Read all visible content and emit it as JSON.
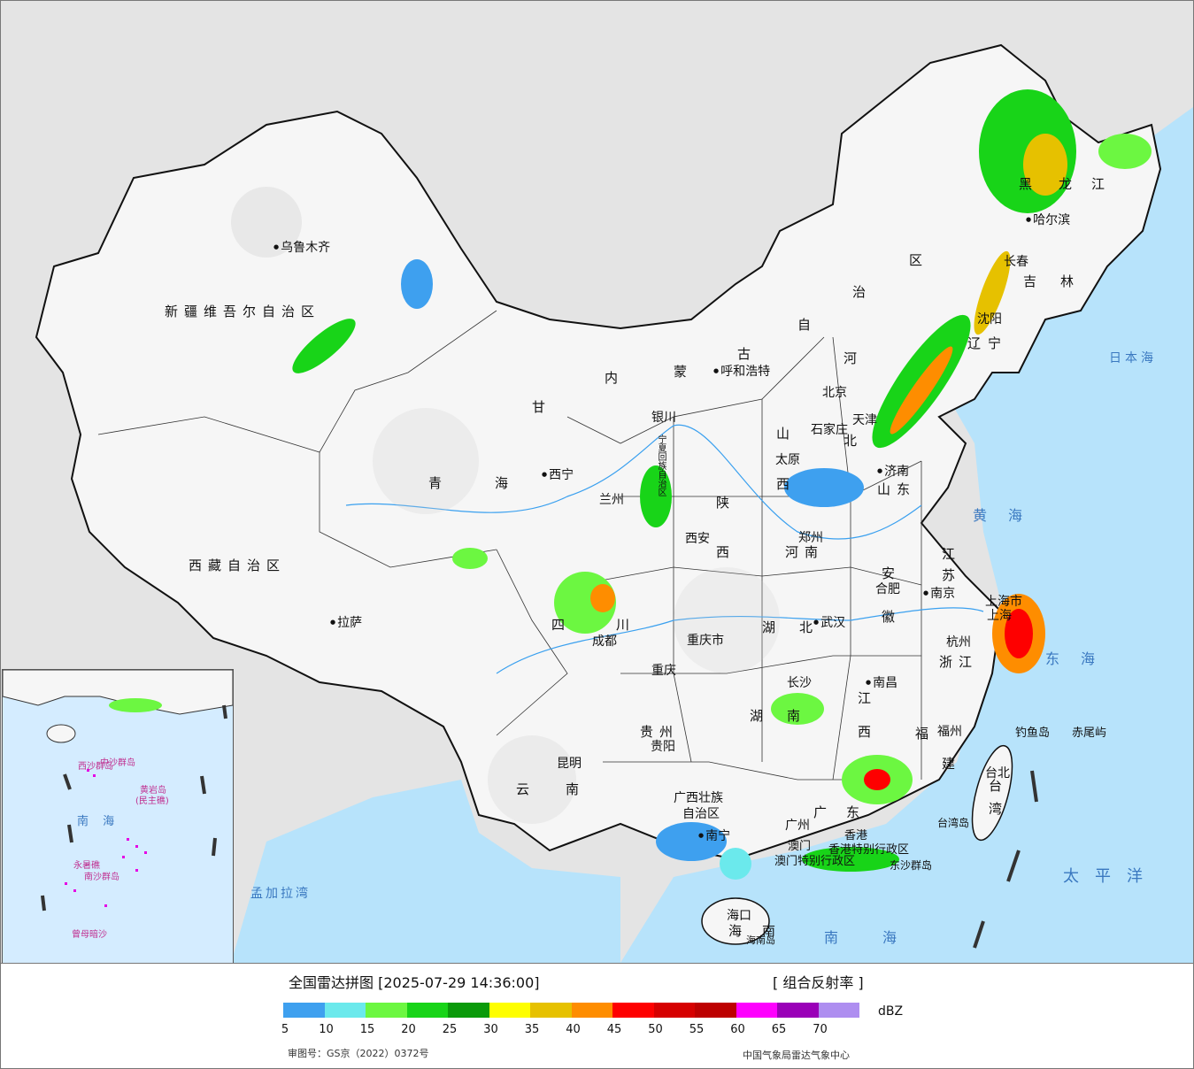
{
  "title": "全国雷达拼图 [2025-07-29 14:36:00]",
  "product": "[ 组合反射率 ]",
  "unit": "dBZ",
  "legend": {
    "colors": [
      "#3ea0ef",
      "#6be9ec",
      "#6cf741",
      "#18d418",
      "#0a9a0a",
      "#fefe00",
      "#e6c100",
      "#fe8d00",
      "#fe0000",
      "#d60000",
      "#bd0000",
      "#fe00fe",
      "#9a00b8",
      "#ae8ef0"
    ],
    "ticks": [
      "5",
      "10",
      "15",
      "20",
      "25",
      "30",
      "35",
      "40",
      "45",
      "50",
      "55",
      "60",
      "65",
      "70"
    ]
  },
  "review_number": "审图号：GS京（2022）0372号",
  "organization": "中国气象局雷达气象中心",
  "regions": {
    "xinjiang": "新疆维吾尔自治区",
    "tibet": "西藏自治区",
    "qinghai_1": "青",
    "qinghai_2": "海",
    "gansu": "甘",
    "neimenggu": [
      "内",
      "蒙",
      "古",
      "自",
      "治",
      "区"
    ],
    "heilongjiang": [
      "黑",
      "龙",
      "江"
    ],
    "jilin": [
      "吉",
      "林"
    ],
    "liaoning": [
      "辽",
      "宁"
    ],
    "hebei": [
      "河",
      "北"
    ],
    "shanxi": [
      "山",
      "西"
    ],
    "shandong": "山东",
    "henan": "河南",
    "shaanxi": [
      "陕",
      "西"
    ],
    "sichuan": [
      "四",
      "川"
    ],
    "chongqing": "重庆市",
    "hubei": [
      "湖",
      "北"
    ],
    "hunan": [
      "湖",
      "南"
    ],
    "jiangxi": [
      "江",
      "西"
    ],
    "anhui": [
      "安",
      "徽"
    ],
    "jiangsu": [
      "江",
      "苏"
    ],
    "zhejiang": "浙江",
    "fujian": [
      "福",
      "建"
    ],
    "guizhou": "贵州",
    "yunnan": [
      "云",
      "南"
    ],
    "guangxi_1": "广西壮族",
    "guangxi_2": "自治区",
    "guangdong": [
      "广",
      "东"
    ],
    "hainan_1": "海",
    "hainan_2": "南",
    "taiwan": [
      "台",
      "湾"
    ],
    "shanghai": "上海市",
    "ningxia": "宁夏回族自治区",
    "hk": "香港特别行政区",
    "macau": "澳门特别行政区"
  },
  "cities": {
    "urumqi": "乌鲁木齐",
    "lhasa": "拉萨",
    "xining": "西宁",
    "lanzhou": "兰州",
    "yinchuan": "银川",
    "hohhot": "呼和浩特",
    "beijing": "北京",
    "tianjin": "天津",
    "shijiazhuang": "石家庄",
    "taiyuan": "太原",
    "jinan": "济南",
    "zhengzhou": "郑州",
    "xian": "西安",
    "chengdu": "成都",
    "chongqing": "重庆",
    "wuhan": "武汉",
    "hefei": "合肥",
    "nanjing": "南京",
    "shanghai": "上海",
    "hangzhou": "杭州",
    "changsha": "长沙",
    "nanchang": "南昌",
    "fuzhou": "福州",
    "guiyang": "贵阳",
    "kunming": "昆明",
    "nanning": "南宁",
    "guangzhou": "广州",
    "haikou": "海口",
    "taibei": "台北",
    "harbin": "哈尔滨",
    "changchun": "长春",
    "shenyang": "沈阳",
    "hk": "香港",
    "macau": "澳门"
  },
  "islands": {
    "diaoyu": "钓鱼岛",
    "chiwei": "赤尾屿",
    "taiwan_island": "台湾岛",
    "hainan_island": "海南岛",
    "dongsha": "东沙群岛"
  },
  "seas": {
    "japan": "日本海",
    "yellow": "黄海",
    "east": "东海",
    "pacific": "太平洋",
    "south": "南海",
    "bengal": "孟加拉湾"
  },
  "inset": {
    "xisha": "西沙群岛",
    "zhongsha": "中沙群岛",
    "huangyan": "黄岩岛",
    "minzhu": "(民主礁)",
    "nansha": "南沙群岛",
    "south_sea": "南 海",
    "zengmu": "曾母暗沙",
    "yongshu": "永暑礁"
  }
}
